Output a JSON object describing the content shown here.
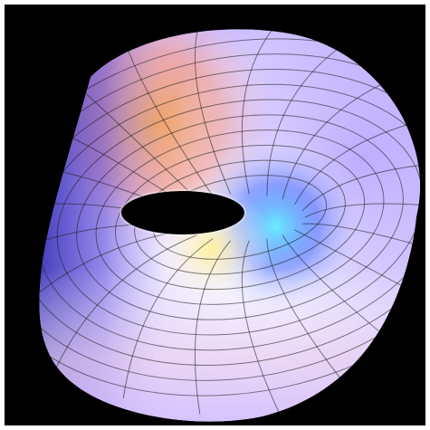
{
  "scene": {
    "subject": "3d-shaded-surface-with-grid",
    "background_color": "#000000",
    "frame_color": "#ffffff",
    "colors": {
      "highlight": "#fff4d8",
      "warm_orange": "#f1a25a",
      "salmon": "#f6a08f",
      "pink": "#f5c0d5",
      "lavender": "#b9a6ff",
      "violet": "#5b4bd8",
      "indigo": "#2f2ab0",
      "cyan": "#64f0ff",
      "blue": "#2a5cff",
      "yellow": "#fff19a",
      "grid_line": "#1a1a1a",
      "hole": "#000000"
    }
  }
}
